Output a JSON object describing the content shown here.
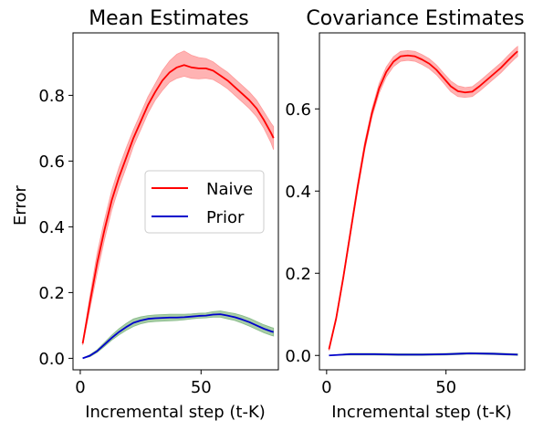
{
  "chart_data": [
    {
      "type": "line",
      "title": "Mean Estimates",
      "xlabel": "Incremental step (t-K)",
      "ylabel": "Error",
      "xlim": [
        -3,
        82
      ],
      "ylim": [
        -0.035,
        0.99
      ],
      "xticks": [
        0,
        50
      ],
      "xtick_labels": [
        "0",
        "50"
      ],
      "yticks": [
        0.0,
        0.2,
        0.4,
        0.6,
        0.8
      ],
      "ytick_labels": [
        "0.0",
        "0.2",
        "0.4",
        "0.6",
        "0.8"
      ],
      "legend": {
        "position": "center-right",
        "entries": [
          "Naive",
          "Prior"
        ]
      },
      "series": [
        {
          "name": "Naive",
          "color": "#ff0000",
          "band_color": "#ff9999",
          "x": [
            1,
            4,
            7,
            10,
            13,
            16,
            19,
            22,
            25,
            28,
            31,
            34,
            37,
            40,
            43,
            46,
            49,
            52,
            55,
            58,
            61,
            64,
            67,
            70,
            73,
            76,
            79,
            80
          ],
          "y": [
            0.045,
            0.17,
            0.29,
            0.39,
            0.48,
            0.55,
            0.61,
            0.67,
            0.72,
            0.77,
            0.81,
            0.845,
            0.87,
            0.885,
            0.892,
            0.885,
            0.882,
            0.882,
            0.875,
            0.86,
            0.845,
            0.825,
            0.805,
            0.785,
            0.76,
            0.725,
            0.685,
            0.67
          ],
          "lower": [
            0.04,
            0.15,
            0.26,
            0.36,
            0.45,
            0.52,
            0.58,
            0.645,
            0.695,
            0.745,
            0.785,
            0.815,
            0.84,
            0.852,
            0.858,
            0.852,
            0.85,
            0.852,
            0.848,
            0.835,
            0.82,
            0.8,
            0.78,
            0.76,
            0.735,
            0.7,
            0.655,
            0.635
          ],
          "upper": [
            0.05,
            0.19,
            0.32,
            0.42,
            0.51,
            0.58,
            0.64,
            0.695,
            0.745,
            0.795,
            0.835,
            0.875,
            0.905,
            0.925,
            0.935,
            0.922,
            0.915,
            0.912,
            0.902,
            0.885,
            0.87,
            0.85,
            0.83,
            0.81,
            0.785,
            0.75,
            0.715,
            0.705
          ]
        },
        {
          "name": "Prior",
          "color": "#0000cc",
          "band_color": "#88bb88",
          "x": [
            1,
            4,
            7,
            10,
            13,
            16,
            19,
            22,
            25,
            28,
            31,
            34,
            37,
            40,
            43,
            46,
            49,
            52,
            55,
            58,
            61,
            64,
            67,
            70,
            73,
            76,
            79,
            80
          ],
          "y": [
            0.0,
            0.008,
            0.022,
            0.042,
            0.062,
            0.08,
            0.095,
            0.108,
            0.115,
            0.12,
            0.122,
            0.123,
            0.124,
            0.124,
            0.125,
            0.127,
            0.129,
            0.13,
            0.133,
            0.134,
            0.13,
            0.125,
            0.118,
            0.11,
            0.1,
            0.09,
            0.082,
            0.08
          ],
          "lower": [
            0.0,
            0.005,
            0.018,
            0.036,
            0.055,
            0.071,
            0.085,
            0.097,
            0.105,
            0.11,
            0.112,
            0.113,
            0.114,
            0.115,
            0.117,
            0.12,
            0.122,
            0.123,
            0.125,
            0.125,
            0.12,
            0.115,
            0.107,
            0.098,
            0.088,
            0.078,
            0.07,
            0.068
          ],
          "upper": [
            0.0,
            0.011,
            0.026,
            0.048,
            0.07,
            0.09,
            0.106,
            0.12,
            0.126,
            0.13,
            0.132,
            0.133,
            0.134,
            0.134,
            0.134,
            0.135,
            0.137,
            0.138,
            0.142,
            0.144,
            0.14,
            0.136,
            0.13,
            0.122,
            0.112,
            0.102,
            0.094,
            0.092
          ]
        }
      ]
    },
    {
      "type": "line",
      "title": "Covariance Estimates",
      "xlabel": "Incremental step (t-K)",
      "ylabel": "",
      "xlim": [
        -3,
        83
      ],
      "ylim": [
        -0.035,
        0.785
      ],
      "xticks": [
        0,
        50
      ],
      "xtick_labels": [
        "0",
        "50"
      ],
      "yticks": [
        0.0,
        0.2,
        0.4,
        0.6
      ],
      "ytick_labels": [
        "0.0",
        "0.2",
        "0.4",
        "0.6"
      ],
      "series": [
        {
          "name": "Naive",
          "color": "#ff0000",
          "band_color": "#ff9999",
          "x": [
            1,
            4,
            7,
            10,
            13,
            16,
            19,
            22,
            25,
            28,
            31,
            34,
            37,
            40,
            43,
            46,
            49,
            52,
            55,
            58,
            61,
            64,
            67,
            70,
            73,
            76,
            79,
            80
          ],
          "y": [
            0.015,
            0.09,
            0.19,
            0.3,
            0.41,
            0.51,
            0.59,
            0.65,
            0.69,
            0.715,
            0.728,
            0.73,
            0.728,
            0.72,
            0.71,
            0.695,
            0.675,
            0.655,
            0.643,
            0.64,
            0.642,
            0.655,
            0.67,
            0.685,
            0.7,
            0.718,
            0.735,
            0.74
          ],
          "lower": [
            0.012,
            0.085,
            0.183,
            0.292,
            0.4,
            0.5,
            0.58,
            0.638,
            0.678,
            0.703,
            0.716,
            0.718,
            0.716,
            0.708,
            0.698,
            0.683,
            0.663,
            0.642,
            0.63,
            0.628,
            0.63,
            0.643,
            0.658,
            0.673,
            0.688,
            0.706,
            0.723,
            0.728
          ],
          "upper": [
            0.018,
            0.095,
            0.197,
            0.308,
            0.42,
            0.52,
            0.6,
            0.662,
            0.702,
            0.727,
            0.74,
            0.742,
            0.74,
            0.732,
            0.722,
            0.707,
            0.687,
            0.668,
            0.656,
            0.652,
            0.654,
            0.667,
            0.682,
            0.697,
            0.712,
            0.73,
            0.747,
            0.752
          ]
        },
        {
          "name": "Prior",
          "color": "#0000cc",
          "band_color": "#88bb88",
          "x": [
            1,
            10,
            20,
            30,
            40,
            50,
            60,
            70,
            80
          ],
          "y": [
            0.0,
            0.003,
            0.003,
            0.002,
            0.002,
            0.003,
            0.005,
            0.004,
            0.002
          ],
          "lower": [
            0.0,
            0.001,
            0.001,
            0.0,
            0.0,
            0.001,
            0.003,
            0.002,
            0.0
          ],
          "upper": [
            0.0,
            0.005,
            0.005,
            0.004,
            0.004,
            0.005,
            0.007,
            0.006,
            0.004
          ]
        }
      ]
    }
  ]
}
